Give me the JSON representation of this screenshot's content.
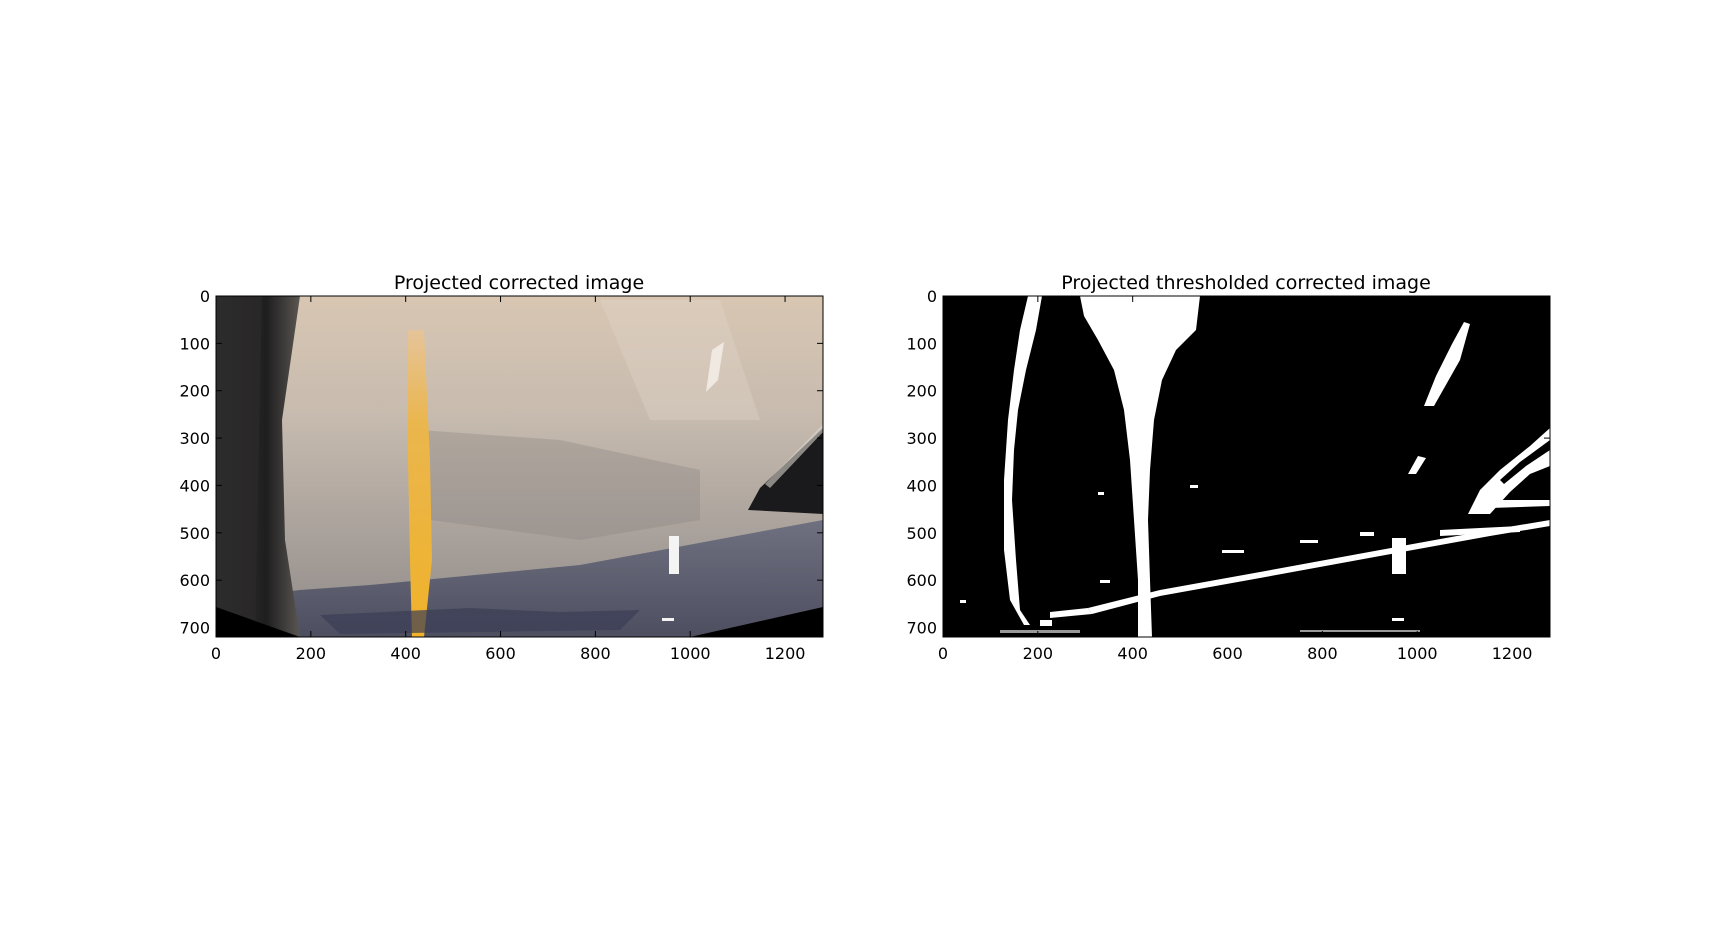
{
  "panels": [
    {
      "title": "Projected corrected image",
      "x_ticks": [
        "0",
        "200",
        "400",
        "600",
        "800",
        "1000",
        "1200"
      ],
      "y_ticks": [
        "0",
        "100",
        "200",
        "300",
        "400",
        "500",
        "600",
        "700"
      ],
      "xlim": [
        0,
        1280
      ],
      "ylim": [
        720,
        0
      ]
    },
    {
      "title": "Projected thresholded corrected image",
      "x_ticks": [
        "0",
        "200",
        "400",
        "600",
        "800",
        "1000",
        "1200"
      ],
      "y_ticks": [
        "0",
        "100",
        "200",
        "300",
        "400",
        "500",
        "600",
        "700"
      ],
      "xlim": [
        0,
        1280
      ],
      "ylim": [
        720,
        0
      ]
    }
  ]
}
